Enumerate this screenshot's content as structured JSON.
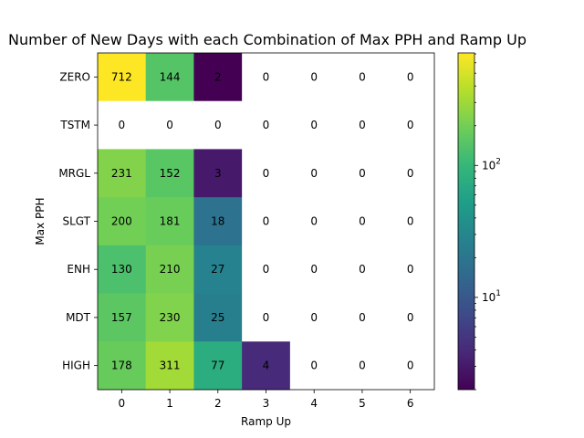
{
  "chart_data": {
    "type": "heatmap",
    "title": "Number of New Days with each Combination of Max PPH and Ramp Up",
    "xlabel": "Ramp Up",
    "ylabel": "Max PPH",
    "x_categories": [
      "0",
      "1",
      "2",
      "3",
      "4",
      "5",
      "6"
    ],
    "y_categories": [
      "ZERO",
      "TSTM",
      "MRGL",
      "SLGT",
      "ENH",
      "MDT",
      "HIGH"
    ],
    "values": [
      [
        712,
        144,
        2,
        0,
        0,
        0,
        0
      ],
      [
        0,
        0,
        0,
        0,
        0,
        0,
        0
      ],
      [
        231,
        152,
        3,
        0,
        0,
        0,
        0
      ],
      [
        200,
        181,
        18,
        0,
        0,
        0,
        0
      ],
      [
        130,
        210,
        27,
        0,
        0,
        0,
        0
      ],
      [
        157,
        230,
        25,
        0,
        0,
        0,
        0
      ],
      [
        178,
        311,
        77,
        4,
        0,
        0,
        0
      ]
    ],
    "colormap": "viridis",
    "color_scale": "log",
    "color_range": [
      2,
      712
    ],
    "zero_cells_color": "#ffffff",
    "colorbar": {
      "position": "right",
      "major_tick_labels": [
        "10^1",
        "10^2"
      ],
      "major_ticks": [
        10,
        100
      ]
    },
    "grid": false
  }
}
